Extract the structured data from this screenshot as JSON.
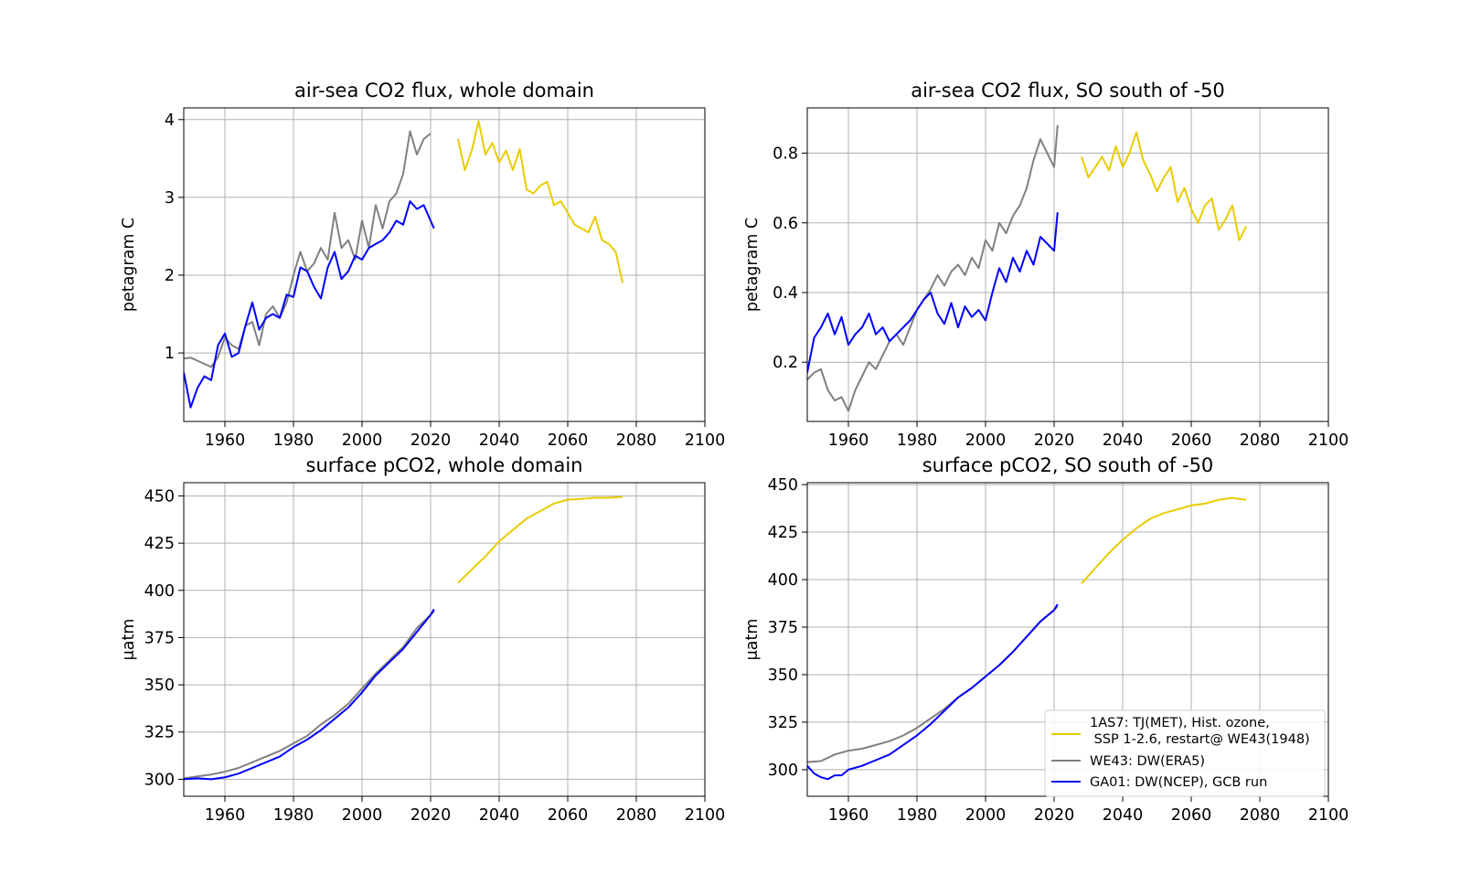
{
  "figure": {
    "background": "#ffffff"
  },
  "legend": {
    "placement": "lower-right of bottom-right panel",
    "entries": [
      {
        "series": "1AS7",
        "lines": [
          "1AS7: TJ(MET), Hist. ozone,",
          " SSP 1-2.6, restart@ WE43(1948)"
        ]
      },
      {
        "series": "WE43",
        "lines": [
          "WE43: DW(ERA5)"
        ]
      },
      {
        "series": "GA01",
        "lines": [
          "GA01: DW(NCEP), GCB run"
        ]
      }
    ]
  },
  "series_styles": {
    "1AS7": {
      "color": "#e8cc00"
    },
    "WE43": {
      "color": "#808080"
    },
    "GA01": {
      "color": "#0000ff"
    }
  },
  "chart_data": [
    {
      "type": "line",
      "title": "air-sea CO2 flux, whole domain",
      "xlabel": "",
      "ylabel": "petagram C",
      "xlim": [
        1948,
        2100
      ],
      "ylim": [
        0.12,
        4.15
      ],
      "xticks": [
        1960,
        1980,
        2000,
        2020,
        2040,
        2060,
        2080,
        2100
      ],
      "yticks": [
        1,
        2,
        3,
        4
      ],
      "ytick_labels": [
        "1",
        "2",
        "3",
        "4"
      ],
      "grid": true,
      "series": [
        {
          "key": "WE43",
          "x": [
            1948,
            1950,
            1952,
            1954,
            1956,
            1958,
            1960,
            1962,
            1964,
            1966,
            1968,
            1970,
            1972,
            1974,
            1976,
            1978,
            1980,
            1982,
            1984,
            1986,
            1988,
            1990,
            1992,
            1994,
            1996,
            1998,
            2000,
            2002,
            2004,
            2006,
            2008,
            2010,
            2012,
            2014,
            2016,
            2018,
            2020
          ],
          "y": [
            0.93,
            0.94,
            0.9,
            0.86,
            0.82,
            0.95,
            1.2,
            1.1,
            1.05,
            1.35,
            1.4,
            1.1,
            1.5,
            1.6,
            1.45,
            1.65,
            2.0,
            2.3,
            2.05,
            2.15,
            2.35,
            2.2,
            2.8,
            2.35,
            2.45,
            2.2,
            2.7,
            2.35,
            2.9,
            2.6,
            2.95,
            3.05,
            3.3,
            3.85,
            3.55,
            3.75,
            3.82
          ]
        },
        {
          "key": "GA01",
          "x": [
            1948,
            1950,
            1952,
            1954,
            1956,
            1958,
            1960,
            1962,
            1964,
            1966,
            1968,
            1970,
            1972,
            1974,
            1976,
            1978,
            1980,
            1982,
            1984,
            1986,
            1988,
            1990,
            1992,
            1994,
            1996,
            1998,
            2000,
            2002,
            2004,
            2006,
            2008,
            2010,
            2012,
            2014,
            2016,
            2018,
            2020,
            2021
          ],
          "y": [
            0.75,
            0.3,
            0.55,
            0.7,
            0.65,
            1.1,
            1.25,
            0.95,
            1.0,
            1.35,
            1.65,
            1.3,
            1.45,
            1.5,
            1.45,
            1.75,
            1.72,
            2.1,
            2.05,
            1.85,
            1.7,
            2.1,
            2.3,
            1.95,
            2.05,
            2.25,
            2.2,
            2.35,
            2.4,
            2.45,
            2.55,
            2.7,
            2.65,
            2.95,
            2.85,
            2.9,
            2.7,
            2.6
          ]
        },
        {
          "key": "1AS7",
          "x": [
            2028,
            2030,
            2032,
            2034,
            2036,
            2038,
            2040,
            2042,
            2044,
            2046,
            2048,
            2050,
            2052,
            2054,
            2056,
            2058,
            2060,
            2062,
            2064,
            2066,
            2068,
            2070,
            2072,
            2074,
            2076
          ],
          "y": [
            3.75,
            3.35,
            3.6,
            3.98,
            3.55,
            3.7,
            3.45,
            3.6,
            3.35,
            3.62,
            3.1,
            3.05,
            3.15,
            3.2,
            2.9,
            2.95,
            2.8,
            2.65,
            2.6,
            2.55,
            2.75,
            2.45,
            2.4,
            2.3,
            1.9
          ]
        }
      ]
    },
    {
      "type": "line",
      "title": "air-sea CO2 flux, SO south of -50",
      "xlabel": "",
      "ylabel": "petagram C",
      "xlim": [
        1948,
        2100
      ],
      "ylim": [
        0.03,
        0.93
      ],
      "xticks": [
        1960,
        1980,
        2000,
        2020,
        2040,
        2060,
        2080,
        2100
      ],
      "yticks": [
        0.2,
        0.4,
        0.6,
        0.8
      ],
      "ytick_labels": [
        "0.2",
        "0.4",
        "0.6",
        "0.8"
      ],
      "grid": true,
      "series": [
        {
          "key": "WE43",
          "x": [
            1948,
            1950,
            1952,
            1954,
            1956,
            1958,
            1960,
            1962,
            1964,
            1966,
            1968,
            1970,
            1972,
            1974,
            1976,
            1978,
            1980,
            1982,
            1984,
            1986,
            1988,
            1990,
            1992,
            1994,
            1996,
            1998,
            2000,
            2002,
            2004,
            2006,
            2008,
            2010,
            2012,
            2014,
            2016,
            2018,
            2020,
            2021
          ],
          "y": [
            0.15,
            0.17,
            0.18,
            0.12,
            0.09,
            0.1,
            0.06,
            0.12,
            0.16,
            0.2,
            0.18,
            0.22,
            0.26,
            0.28,
            0.25,
            0.3,
            0.35,
            0.38,
            0.41,
            0.45,
            0.42,
            0.46,
            0.48,
            0.45,
            0.5,
            0.47,
            0.55,
            0.52,
            0.6,
            0.57,
            0.62,
            0.65,
            0.7,
            0.78,
            0.84,
            0.8,
            0.76,
            0.88
          ]
        },
        {
          "key": "GA01",
          "x": [
            1948,
            1950,
            1952,
            1954,
            1956,
            1958,
            1960,
            1962,
            1964,
            1966,
            1968,
            1970,
            1972,
            1974,
            1976,
            1978,
            1980,
            1982,
            1984,
            1986,
            1988,
            1990,
            1992,
            1994,
            1996,
            1998,
            2000,
            2002,
            2004,
            2006,
            2008,
            2010,
            2012,
            2014,
            2016,
            2018,
            2020,
            2021
          ],
          "y": [
            0.17,
            0.27,
            0.3,
            0.34,
            0.28,
            0.33,
            0.25,
            0.28,
            0.3,
            0.34,
            0.28,
            0.3,
            0.26,
            0.28,
            0.3,
            0.32,
            0.35,
            0.38,
            0.4,
            0.34,
            0.31,
            0.37,
            0.3,
            0.36,
            0.33,
            0.35,
            0.32,
            0.4,
            0.47,
            0.43,
            0.5,
            0.46,
            0.52,
            0.48,
            0.56,
            0.54,
            0.52,
            0.63
          ]
        },
        {
          "key": "1AS7",
          "x": [
            2028,
            2030,
            2032,
            2034,
            2036,
            2038,
            2040,
            2042,
            2044,
            2046,
            2048,
            2050,
            2052,
            2054,
            2056,
            2058,
            2060,
            2062,
            2064,
            2066,
            2068,
            2070,
            2072,
            2074,
            2076
          ],
          "y": [
            0.79,
            0.73,
            0.76,
            0.79,
            0.75,
            0.82,
            0.76,
            0.8,
            0.86,
            0.78,
            0.74,
            0.69,
            0.73,
            0.76,
            0.66,
            0.7,
            0.64,
            0.6,
            0.65,
            0.67,
            0.58,
            0.61,
            0.65,
            0.55,
            0.59
          ]
        }
      ]
    },
    {
      "type": "line",
      "title": "surface pCO2, whole domain",
      "xlabel": "",
      "ylabel": "μatm",
      "xlim": [
        1948,
        2100
      ],
      "ylim": [
        291,
        457
      ],
      "xticks": [
        1960,
        1980,
        2000,
        2020,
        2040,
        2060,
        2080,
        2100
      ],
      "yticks": [
        300,
        325,
        350,
        375,
        400,
        425,
        450
      ],
      "ytick_labels": [
        "300",
        "325",
        "350",
        "375",
        "400",
        "425",
        "450"
      ],
      "grid": true,
      "series": [
        {
          "key": "WE43",
          "x": [
            1948,
            1952,
            1956,
            1960,
            1964,
            1968,
            1972,
            1976,
            1980,
            1984,
            1988,
            1992,
            1996,
            2000,
            2004,
            2008,
            2012,
            2016,
            2020,
            2021
          ],
          "y": [
            300.5,
            301.5,
            302.5,
            304,
            306,
            309,
            312,
            315,
            319,
            323,
            329,
            334,
            340,
            348,
            356,
            363,
            370,
            380,
            387,
            389
          ]
        },
        {
          "key": "GA01",
          "x": [
            1948,
            1952,
            1956,
            1960,
            1964,
            1968,
            1972,
            1976,
            1980,
            1984,
            1988,
            1992,
            1996,
            2000,
            2004,
            2008,
            2012,
            2016,
            2020,
            2021
          ],
          "y": [
            300,
            300.5,
            300,
            301,
            303,
            306,
            309,
            312,
            317,
            321,
            326,
            332,
            338,
            346,
            355,
            362,
            369,
            378,
            387,
            390
          ]
        },
        {
          "key": "1AS7",
          "x": [
            2028,
            2032,
            2036,
            2040,
            2044,
            2048,
            2052,
            2056,
            2060,
            2064,
            2068,
            2072,
            2076
          ],
          "y": [
            404,
            411,
            418,
            426,
            432,
            438,
            442,
            446,
            448,
            448.5,
            449,
            449,
            449.5
          ]
        }
      ]
    },
    {
      "type": "line",
      "title": "surface pCO2, SO south of -50",
      "xlabel": "",
      "ylabel": "μatm",
      "xlim": [
        1948,
        2100
      ],
      "ylim": [
        286,
        451
      ],
      "xticks": [
        1960,
        1980,
        2000,
        2020,
        2040,
        2060,
        2080,
        2100
      ],
      "yticks": [
        300,
        325,
        350,
        375,
        400,
        425,
        450
      ],
      "ytick_labels": [
        "300",
        "325",
        "350",
        "375",
        "400",
        "425",
        "450"
      ],
      "grid": true,
      "series": [
        {
          "key": "WE43",
          "x": [
            1948,
            1952,
            1956,
            1960,
            1964,
            1968,
            1972,
            1976,
            1980,
            1984,
            1988,
            1992,
            1996,
            2000,
            2004,
            2008,
            2012,
            2016,
            2020,
            2021
          ],
          "y": [
            304,
            304.5,
            308,
            310,
            311,
            313,
            315,
            318,
            322,
            327,
            332,
            338,
            343,
            349,
            355,
            362,
            370,
            378,
            384,
            386
          ]
        },
        {
          "key": "GA01",
          "x": [
            1948,
            1950,
            1952,
            1954,
            1956,
            1958,
            1960,
            1964,
            1968,
            1972,
            1976,
            1980,
            1984,
            1988,
            1992,
            1996,
            2000,
            2004,
            2008,
            2012,
            2016,
            2020,
            2021
          ],
          "y": [
            302,
            298,
            296,
            295,
            297,
            297,
            300,
            302,
            305,
            308,
            313,
            318,
            324,
            331,
            338,
            343,
            349,
            355,
            362,
            370,
            378,
            384,
            387
          ]
        },
        {
          "key": "1AS7",
          "x": [
            2028,
            2032,
            2036,
            2040,
            2044,
            2048,
            2052,
            2056,
            2060,
            2064,
            2068,
            2072,
            2076
          ],
          "y": [
            398,
            406,
            414,
            421,
            427,
            432,
            435,
            437,
            439,
            440,
            442,
            443,
            442
          ]
        }
      ]
    }
  ]
}
